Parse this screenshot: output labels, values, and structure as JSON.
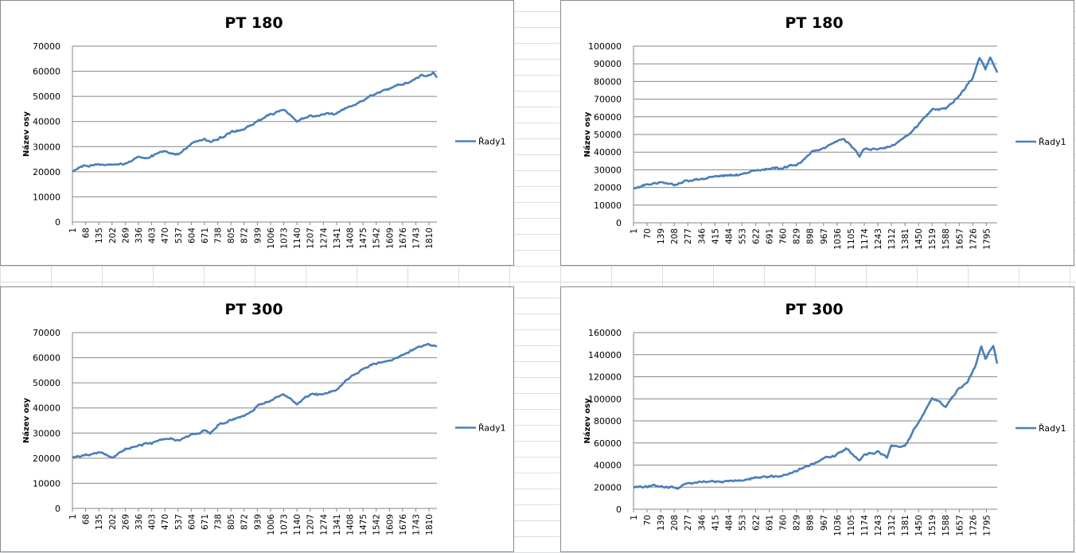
{
  "chart_data": [
    {
      "type": "line",
      "title": "PT 180",
      "ylabel": "Název osy",
      "xlabel": "",
      "legend": "Řady1",
      "legend_position": "right",
      "ylim": [
        0,
        70000
      ],
      "ystep": 10000,
      "grid": true,
      "xticks": [
        "1",
        "68",
        "135",
        "202",
        "269",
        "336",
        "403",
        "470",
        "537",
        "604",
        "671",
        "738",
        "805",
        "872",
        "939",
        "1006",
        "1073",
        "1140",
        "1207",
        "1274",
        "1341",
        "1408",
        "1475",
        "1542",
        "1609",
        "1676",
        "1743",
        "1810"
      ],
      "xlim": [
        1,
        1850
      ],
      "series": [
        {
          "name": "Řady1",
          "color": "#4a7ebb",
          "points": [
            [
              1,
              20000
            ],
            [
              68,
              22000
            ],
            [
              135,
              23000
            ],
            [
              202,
              22500
            ],
            [
              269,
              23000
            ],
            [
              336,
              25500
            ],
            [
              403,
              26500
            ],
            [
              470,
              28500
            ],
            [
              537,
              27000
            ],
            [
              604,
              31000
            ],
            [
              671,
              33000
            ],
            [
              700,
              32000
            ],
            [
              738,
              33000
            ],
            [
              805,
              36000
            ],
            [
              872,
              37000
            ],
            [
              939,
              40000
            ],
            [
              1006,
              43000
            ],
            [
              1073,
              44500
            ],
            [
              1140,
              40500
            ],
            [
              1207,
              42500
            ],
            [
              1274,
              42500
            ],
            [
              1341,
              43000
            ],
            [
              1408,
              46000
            ],
            [
              1475,
              48500
            ],
            [
              1542,
              51000
            ],
            [
              1609,
              53000
            ],
            [
              1676,
              54500
            ],
            [
              1743,
              57500
            ],
            [
              1770,
              59000
            ],
            [
              1800,
              58000
            ],
            [
              1830,
              59000
            ],
            [
              1850,
              57500
            ]
          ]
        }
      ]
    },
    {
      "type": "line",
      "title": "PT 180",
      "ylabel": "Název osy",
      "xlabel": "",
      "legend": "Řady1",
      "legend_position": "right",
      "ylim": [
        0,
        100000
      ],
      "ystep": 10000,
      "grid": true,
      "xticks": [
        "1",
        "70",
        "139",
        "208",
        "277",
        "346",
        "415",
        "484",
        "553",
        "622",
        "691",
        "760",
        "829",
        "898",
        "967",
        "1036",
        "1105",
        "1174",
        "1243",
        "1312",
        "1381",
        "1450",
        "1519",
        "1588",
        "1657",
        "1726",
        "1795"
      ],
      "xlim": [
        1,
        1850
      ],
      "series": [
        {
          "name": "Řady1",
          "color": "#4a7ebb",
          "points": [
            [
              1,
              20000
            ],
            [
              139,
              23000
            ],
            [
              208,
              22000
            ],
            [
              346,
              25000
            ],
            [
              484,
              27000
            ],
            [
              553,
              27000
            ],
            [
              622,
              30000
            ],
            [
              691,
              30000
            ],
            [
              760,
              31500
            ],
            [
              829,
              33000
            ],
            [
              898,
              39000
            ],
            [
              967,
              42000
            ],
            [
              1036,
              46000
            ],
            [
              1070,
              48000
            ],
            [
              1105,
              44000
            ],
            [
              1150,
              38000
            ],
            [
              1174,
              42000
            ],
            [
              1243,
              42000
            ],
            [
              1312,
              43000
            ],
            [
              1381,
              48000
            ],
            [
              1450,
              55000
            ],
            [
              1519,
              64000
            ],
            [
              1588,
              64000
            ],
            [
              1657,
              72000
            ],
            [
              1726,
              82000
            ],
            [
              1760,
              93000
            ],
            [
              1790,
              87000
            ],
            [
              1815,
              93000
            ],
            [
              1850,
              85000
            ]
          ]
        }
      ]
    },
    {
      "type": "line",
      "title": "PT 300",
      "ylabel": "Název osy",
      "xlabel": "",
      "legend": "Řady1",
      "legend_position": "right",
      "ylim": [
        0,
        70000
      ],
      "ystep": 10000,
      "grid": true,
      "xticks": [
        "1",
        "68",
        "135",
        "202",
        "269",
        "336",
        "403",
        "470",
        "537",
        "604",
        "671",
        "738",
        "805",
        "872",
        "939",
        "1006",
        "1073",
        "1140",
        "1207",
        "1274",
        "1341",
        "1408",
        "1475",
        "1542",
        "1609",
        "1676",
        "1743",
        "1810"
      ],
      "xlim": [
        1,
        1850
      ],
      "series": [
        {
          "name": "Řady1",
          "color": "#4a7ebb",
          "points": [
            [
              1,
              20500
            ],
            [
              68,
              21500
            ],
            [
              135,
              22500
            ],
            [
              202,
              20500
            ],
            [
              269,
              23500
            ],
            [
              336,
              25000
            ],
            [
              403,
              26000
            ],
            [
              470,
              28500
            ],
            [
              537,
              27500
            ],
            [
              604,
              29000
            ],
            [
              671,
              31000
            ],
            [
              700,
              30000
            ],
            [
              738,
              33000
            ],
            [
              805,
              35500
            ],
            [
              872,
              37000
            ],
            [
              939,
              40500
            ],
            [
              1006,
              43000
            ],
            [
              1073,
              46000
            ],
            [
              1140,
              42000
            ],
            [
              1207,
              45500
            ],
            [
              1274,
              45000
            ],
            [
              1341,
              47500
            ],
            [
              1408,
              52000
            ],
            [
              1475,
              56000
            ],
            [
              1542,
              58000
            ],
            [
              1609,
              58500
            ],
            [
              1676,
              61000
            ],
            [
              1743,
              64000
            ],
            [
              1800,
              65500
            ],
            [
              1850,
              64500
            ]
          ]
        }
      ]
    },
    {
      "type": "line",
      "title": "PT 300",
      "ylabel": "Název osy",
      "xlabel": "",
      "legend": "Řady1",
      "legend_position": "right",
      "ylim": [
        0,
        160000
      ],
      "ystep": 20000,
      "grid": true,
      "xticks": [
        "1",
        "70",
        "139",
        "208",
        "277",
        "346",
        "415",
        "484",
        "553",
        "622",
        "691",
        "760",
        "829",
        "898",
        "967",
        "1036",
        "1105",
        "1174",
        "1243",
        "1312",
        "1381",
        "1450",
        "1519",
        "1588",
        "1657",
        "1726",
        "1795"
      ],
      "xlim": [
        1,
        1850
      ],
      "series": [
        {
          "name": "Řady1",
          "color": "#4a7ebb",
          "points": [
            [
              1,
              20000
            ],
            [
              139,
              21500
            ],
            [
              208,
              19500
            ],
            [
              277,
              22500
            ],
            [
              346,
              24000
            ],
            [
              484,
              26000
            ],
            [
              553,
              26500
            ],
            [
              622,
              29000
            ],
            [
              691,
              28500
            ],
            [
              760,
              31000
            ],
            [
              829,
              35000
            ],
            [
              898,
              40000
            ],
            [
              967,
              46000
            ],
            [
              1036,
              50000
            ],
            [
              1080,
              56000
            ],
            [
              1105,
              52000
            ],
            [
              1150,
              44000
            ],
            [
              1174,
              50000
            ],
            [
              1243,
              52000
            ],
            [
              1290,
              47000
            ],
            [
              1312,
              57000
            ],
            [
              1381,
              58000
            ],
            [
              1450,
              80000
            ],
            [
              1519,
              100000
            ],
            [
              1560,
              98000
            ],
            [
              1588,
              92000
            ],
            [
              1620,
              103000
            ],
            [
              1657,
              110000
            ],
            [
              1700,
              115000
            ],
            [
              1740,
              130000
            ],
            [
              1770,
              147000
            ],
            [
              1790,
              136000
            ],
            [
              1810,
              142000
            ],
            [
              1830,
              148000
            ],
            [
              1850,
              132000
            ]
          ]
        }
      ]
    }
  ]
}
